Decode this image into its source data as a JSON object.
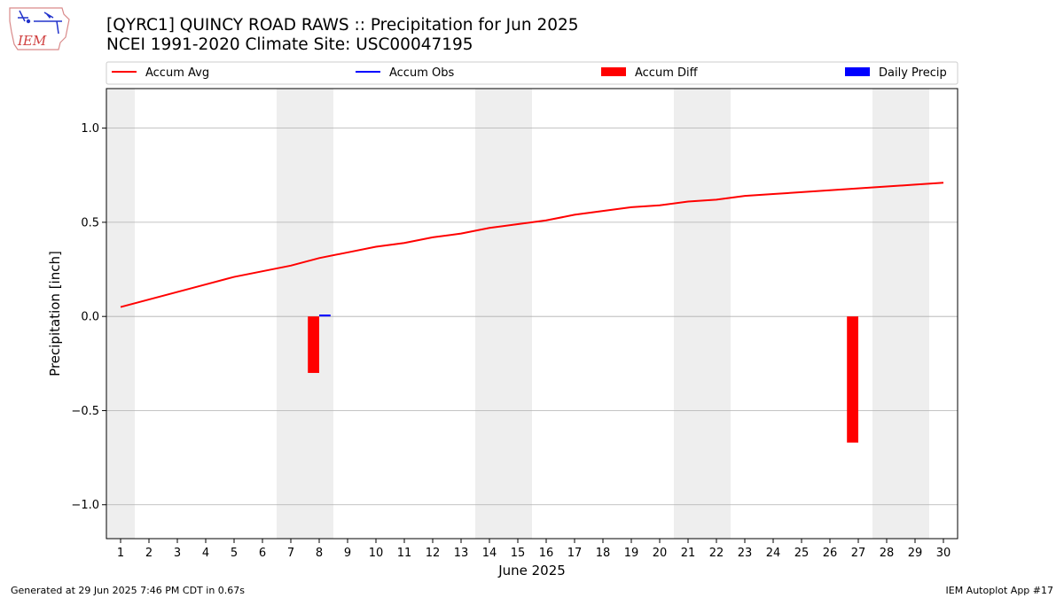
{
  "logo": {
    "text": "IEM"
  },
  "header": {
    "title": "[QYRC1] QUINCY ROAD RAWS :: Precipitation for Jun 2025",
    "subtitle": "NCEI 1991-2020 Climate Site: USC00047195"
  },
  "footer": {
    "left": "Generated at 29 Jun 2025 7:46 PM CDT in 0.67s",
    "right": "IEM Autoplot App #17"
  },
  "colors": {
    "accum_avg": "#ff0000",
    "accum_obs": "#0000ff",
    "accum_diff": "#ff0000",
    "daily_precip": "#0000ff",
    "weekend_shade": "#eeeeee",
    "grid": "#b0b0b0"
  },
  "chart_data": {
    "type": "line",
    "xlabel": "June 2025",
    "ylabel": "Precipitation [inch]",
    "xlim": [
      0.5,
      30.5
    ],
    "ylim": [
      -1.18,
      1.21
    ],
    "x": [
      1,
      2,
      3,
      4,
      5,
      6,
      7,
      8,
      9,
      10,
      11,
      12,
      13,
      14,
      15,
      16,
      17,
      18,
      19,
      20,
      21,
      22,
      23,
      24,
      25,
      26,
      27,
      28,
      29,
      30
    ],
    "x_ticks": [
      "1",
      "2",
      "3",
      "4",
      "5",
      "6",
      "7",
      "8",
      "9",
      "10",
      "11",
      "12",
      "13",
      "14",
      "15",
      "16",
      "17",
      "18",
      "19",
      "20",
      "21",
      "22",
      "23",
      "24",
      "25",
      "26",
      "27",
      "28",
      "29",
      "30"
    ],
    "y_ticks": [
      {
        "value": 1.0,
        "label": "1.0"
      },
      {
        "value": 0.5,
        "label": "0.5"
      },
      {
        "value": 0.0,
        "label": "0.0"
      },
      {
        "value": -0.5,
        "label": "−0.5"
      },
      {
        "value": -1.0,
        "label": "−1.0"
      }
    ],
    "grid": "horizontal",
    "weekend_days": [
      1,
      7,
      8,
      14,
      15,
      21,
      22,
      28,
      29
    ],
    "legend": {
      "placement": "top",
      "entries": [
        {
          "label": "Accum Avg",
          "kind": "line",
          "color": "#ff0000"
        },
        {
          "label": "Accum Obs",
          "kind": "line",
          "color": "#0000ff"
        },
        {
          "label": "Accum Diff",
          "kind": "bar",
          "color": "#ff0000"
        },
        {
          "label": "Daily Precip",
          "kind": "bar",
          "color": "#0000ff"
        }
      ]
    },
    "series": [
      {
        "name": "Accum Avg",
        "type": "line",
        "values": [
          0.05,
          0.09,
          0.13,
          0.17,
          0.21,
          0.24,
          0.27,
          0.31,
          0.34,
          0.37,
          0.39,
          0.42,
          0.44,
          0.47,
          0.49,
          0.51,
          0.54,
          0.56,
          0.58,
          0.59,
          0.61,
          0.62,
          0.64,
          0.65,
          0.66,
          0.67,
          0.68,
          0.69,
          0.7,
          0.71
        ]
      },
      {
        "name": "Accum Diff",
        "type": "bar",
        "points": [
          {
            "x": 8,
            "value": -0.3
          },
          {
            "x": 27,
            "value": -0.67
          }
        ]
      },
      {
        "name": "Daily Precip",
        "type": "bar",
        "points": [
          {
            "x": 8,
            "value": 0.01
          }
        ]
      }
    ]
  }
}
